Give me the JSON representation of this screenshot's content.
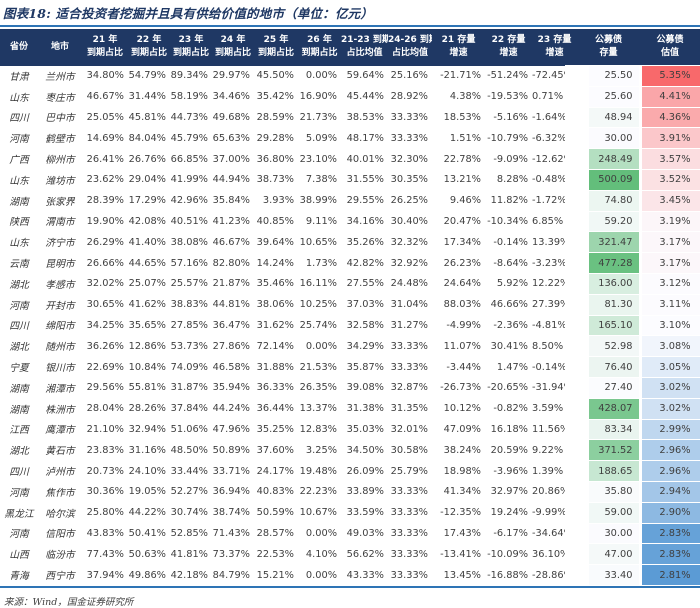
{
  "figure": {
    "title": "图表18: 适合投资者挖掘并且具有供给价值的地市（单位：亿元）",
    "source": "来源：Wind，国金证券研究所"
  },
  "colors": {
    "header_bg": "#1F3864",
    "title_color": "#1F3864",
    "rule_color": "#2E74B5",
    "scale_white": "#FCFCFF",
    "scale_green_max": "#63BE7B",
    "scale_red_max": "#F8696B",
    "scale_blue_min": "#5B9BD5"
  },
  "chart_data": {
    "type": "table",
    "title": "图表18: 适合投资者挖掘并且具有供给价值的地市（单位：亿元）",
    "headers": [
      [
        "省份",
        ""
      ],
      [
        "地市",
        ""
      ],
      [
        "21 年",
        "到期占比"
      ],
      [
        "22 年",
        "到期占比"
      ],
      [
        "23 年",
        "到期占比"
      ],
      [
        "24 年",
        "到期占比"
      ],
      [
        "25 年",
        "到期占比"
      ],
      [
        "26 年",
        "到期占比"
      ],
      [
        "21-23 到期",
        "占比均值"
      ],
      [
        "24-26 到期",
        "占比均值"
      ],
      [
        "21 存量",
        "增速"
      ],
      [
        "22 存量",
        "增速"
      ],
      [
        "23 存量",
        "增速"
      ],
      [
        "公募债",
        "存量"
      ],
      [
        "公募债",
        "估值"
      ]
    ],
    "rows": [
      [
        "甘肃",
        "兰州市",
        "34.80%",
        "54.79%",
        "89.34%",
        "29.97%",
        "45.50%",
        "0.00%",
        "59.64%",
        "25.16%",
        "-21.71%",
        "-51.24%",
        "-72.45%",
        "25.50",
        "5.35%"
      ],
      [
        "山东",
        "枣庄市",
        "46.67%",
        "31.44%",
        "58.19%",
        "34.46%",
        "35.42%",
        "16.90%",
        "45.44%",
        "28.92%",
        "4.38%",
        "-19.53%",
        "0.71%",
        "25.60",
        "4.41%"
      ],
      [
        "四川",
        "巴中市",
        "25.05%",
        "45.81%",
        "44.73%",
        "49.68%",
        "28.59%",
        "21.73%",
        "38.53%",
        "33.33%",
        "18.53%",
        "-5.16%",
        "-1.64%",
        "48.94",
        "4.36%"
      ],
      [
        "河南",
        "鹤壁市",
        "14.69%",
        "84.04%",
        "45.79%",
        "65.63%",
        "29.28%",
        "5.09%",
        "48.17%",
        "33.33%",
        "1.51%",
        "-10.79%",
        "-6.32%",
        "30.00",
        "3.91%"
      ],
      [
        "广西",
        "柳州市",
        "26.41%",
        "26.76%",
        "66.85%",
        "37.00%",
        "36.80%",
        "23.10%",
        "40.01%",
        "32.30%",
        "22.78%",
        "-9.09%",
        "-12.62%",
        "248.49",
        "3.57%"
      ],
      [
        "山东",
        "潍坊市",
        "23.62%",
        "29.04%",
        "41.99%",
        "44.94%",
        "38.73%",
        "7.38%",
        "31.55%",
        "30.35%",
        "13.21%",
        "8.28%",
        "-0.48%",
        "500.09",
        "3.52%"
      ],
      [
        "湖南",
        "张家界",
        "28.39%",
        "17.29%",
        "42.96%",
        "35.84%",
        "3.93%",
        "38.99%",
        "29.55%",
        "26.25%",
        "9.46%",
        "11.82%",
        "-1.72%",
        "74.80",
        "3.45%"
      ],
      [
        "陕西",
        "渭南市",
        "19.90%",
        "42.08%",
        "40.51%",
        "41.23%",
        "40.85%",
        "9.11%",
        "34.16%",
        "30.40%",
        "20.47%",
        "-10.34%",
        "6.85%",
        "59.20",
        "3.19%"
      ],
      [
        "山东",
        "济宁市",
        "26.29%",
        "41.40%",
        "38.08%",
        "46.67%",
        "39.64%",
        "10.65%",
        "35.26%",
        "32.32%",
        "17.34%",
        "-0.14%",
        "13.39%",
        "321.47",
        "3.17%"
      ],
      [
        "云南",
        "昆明市",
        "26.66%",
        "44.65%",
        "57.16%",
        "82.80%",
        "14.24%",
        "1.73%",
        "42.82%",
        "32.92%",
        "26.23%",
        "-8.64%",
        "-3.23%",
        "477.28",
        "3.17%"
      ],
      [
        "湖北",
        "孝感市",
        "32.02%",
        "25.07%",
        "25.57%",
        "21.87%",
        "35.46%",
        "16.11%",
        "27.55%",
        "24.48%",
        "24.64%",
        "5.92%",
        "12.22%",
        "136.00",
        "3.12%"
      ],
      [
        "河南",
        "开封市",
        "30.65%",
        "41.62%",
        "38.83%",
        "44.81%",
        "38.06%",
        "10.25%",
        "37.03%",
        "31.04%",
        "88.03%",
        "46.66%",
        "27.39%",
        "81.30",
        "3.11%"
      ],
      [
        "四川",
        "绵阳市",
        "34.25%",
        "35.65%",
        "27.85%",
        "36.47%",
        "31.62%",
        "25.74%",
        "32.58%",
        "31.27%",
        "-4.99%",
        "-2.36%",
        "-4.81%",
        "165.10",
        "3.10%"
      ],
      [
        "湖北",
        "随州市",
        "36.26%",
        "12.86%",
        "53.73%",
        "27.86%",
        "72.14%",
        "0.00%",
        "34.29%",
        "33.33%",
        "11.07%",
        "30.41%",
        "8.50%",
        "52.98",
        "3.08%"
      ],
      [
        "宁夏",
        "银川市",
        "22.69%",
        "10.84%",
        "74.09%",
        "46.58%",
        "31.88%",
        "21.53%",
        "35.87%",
        "33.33%",
        "-3.44%",
        "1.47%",
        "-0.14%",
        "76.40",
        "3.05%"
      ],
      [
        "湖南",
        "湘潭市",
        "29.56%",
        "55.81%",
        "31.87%",
        "35.94%",
        "36.33%",
        "26.35%",
        "39.08%",
        "32.87%",
        "-26.73%",
        "-20.65%",
        "-31.94%",
        "27.40",
        "3.02%"
      ],
      [
        "湖南",
        "株洲市",
        "28.04%",
        "28.26%",
        "37.84%",
        "44.24%",
        "36.44%",
        "13.37%",
        "31.38%",
        "31.35%",
        "10.12%",
        "-0.82%",
        "3.59%",
        "428.07",
        "3.02%"
      ],
      [
        "江西",
        "鹰潭市",
        "21.10%",
        "32.94%",
        "51.06%",
        "47.96%",
        "35.25%",
        "12.83%",
        "35.03%",
        "32.01%",
        "47.09%",
        "16.18%",
        "11.56%",
        "83.34",
        "2.99%"
      ],
      [
        "湖北",
        "黄石市",
        "23.83%",
        "31.16%",
        "48.50%",
        "50.89%",
        "37.60%",
        "3.25%",
        "34.50%",
        "30.58%",
        "38.24%",
        "20.59%",
        "9.22%",
        "371.52",
        "2.96%"
      ],
      [
        "四川",
        "泸州市",
        "20.73%",
        "24.10%",
        "33.44%",
        "33.71%",
        "24.17%",
        "19.48%",
        "26.09%",
        "25.79%",
        "18.98%",
        "-3.96%",
        "1.39%",
        "188.65",
        "2.96%"
      ],
      [
        "河南",
        "焦作市",
        "30.36%",
        "19.05%",
        "52.27%",
        "36.94%",
        "40.83%",
        "22.23%",
        "33.89%",
        "33.33%",
        "41.34%",
        "32.97%",
        "20.86%",
        "35.80",
        "2.94%"
      ],
      [
        "黑龙江",
        "哈尔滨",
        "25.80%",
        "44.22%",
        "30.74%",
        "38.74%",
        "50.59%",
        "10.67%",
        "33.59%",
        "33.33%",
        "-12.35%",
        "19.24%",
        "-9.99%",
        "59.00",
        "2.90%"
      ],
      [
        "河南",
        "信阳市",
        "43.83%",
        "50.41%",
        "52.85%",
        "71.43%",
        "28.57%",
        "0.00%",
        "49.03%",
        "33.33%",
        "17.43%",
        "-6.17%",
        "-34.64%",
        "30.00",
        "2.83%"
      ],
      [
        "山西",
        "临汾市",
        "77.43%",
        "50.63%",
        "41.81%",
        "73.37%",
        "22.53%",
        "4.10%",
        "56.62%",
        "33.33%",
        "-13.41%",
        "-10.09%",
        "36.10%",
        "47.00",
        "2.83%"
      ],
      [
        "青海",
        "西宁市",
        "37.94%",
        "49.86%",
        "42.18%",
        "84.79%",
        "15.21%",
        "0.00%",
        "43.33%",
        "33.33%",
        "13.45%",
        "-16.88%",
        "-28.86%",
        "33.40",
        "2.81%"
      ]
    ],
    "conditional_formatting": {
      "public_bond_stock_column": {
        "scale": "2-color",
        "min_color": "#FCFCFF",
        "max_color": "#63BE7B"
      },
      "public_bond_valuation_column": {
        "scale": "3-color",
        "min_color": "#5B9BD5",
        "mid_color": "#FCFCFF",
        "max_color": "#F8696B",
        "midpoint": "median"
      }
    },
    "layout_hints": {
      "header_rows": 2,
      "gridlines": false,
      "row_count": 25,
      "column_count": 15
    }
  }
}
